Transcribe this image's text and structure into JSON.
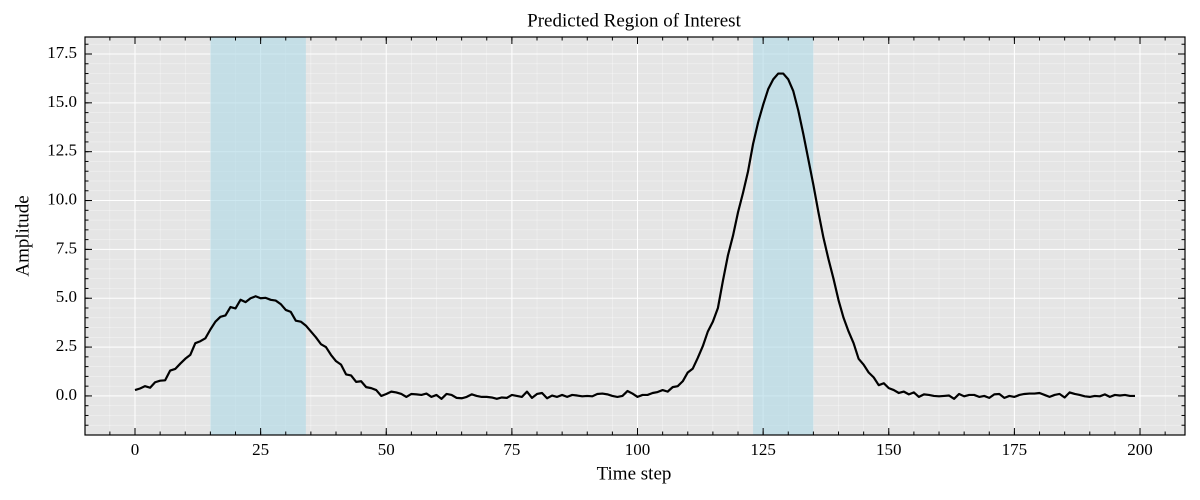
{
  "chart_data": {
    "type": "line",
    "title": "Predicted Region of Interest",
    "xlabel": "Time step",
    "ylabel": "Amplitude",
    "x": [
      0,
      1,
      2,
      3,
      4,
      5,
      6,
      7,
      8,
      9,
      10,
      11,
      12,
      13,
      14,
      15,
      16,
      17,
      18,
      19,
      20,
      21,
      22,
      23,
      24,
      25,
      26,
      27,
      28,
      29,
      30,
      31,
      32,
      33,
      34,
      35,
      36,
      37,
      38,
      39,
      40,
      41,
      42,
      43,
      44,
      45,
      46,
      47,
      48,
      49,
      50,
      51,
      52,
      53,
      54,
      55,
      56,
      57,
      58,
      59,
      60,
      61,
      62,
      63,
      64,
      65,
      66,
      67,
      68,
      69,
      70,
      71,
      72,
      73,
      74,
      75,
      76,
      77,
      78,
      79,
      80,
      81,
      82,
      83,
      84,
      85,
      86,
      87,
      88,
      89,
      90,
      91,
      92,
      93,
      94,
      95,
      96,
      97,
      98,
      99,
      100,
      101,
      102,
      103,
      104,
      105,
      106,
      107,
      108,
      109,
      110,
      111,
      112,
      113,
      114,
      115,
      116,
      117,
      118,
      119,
      120,
      121,
      122,
      123,
      124,
      125,
      126,
      127,
      128,
      129,
      130,
      131,
      132,
      133,
      134,
      135,
      136,
      137,
      138,
      139,
      140,
      141,
      142,
      143,
      144,
      145,
      146,
      147,
      148,
      149,
      150,
      151,
      152,
      153,
      154,
      155,
      156,
      157,
      158,
      159,
      160,
      161,
      162,
      163,
      164,
      165,
      166,
      167,
      168,
      169,
      170,
      171,
      172,
      173,
      174,
      175,
      176,
      177,
      178,
      179,
      180,
      181,
      182,
      183,
      184,
      185,
      186,
      187,
      188,
      189,
      190,
      191,
      192,
      193,
      194,
      195,
      196,
      197,
      198,
      199
    ],
    "series": [
      {
        "color": "#000000",
        "values": [
          0.3,
          0.38,
          0.5,
          0.42,
          0.7,
          0.78,
          0.8,
          1.3,
          1.38,
          1.65,
          1.9,
          2.1,
          2.7,
          2.8,
          2.95,
          3.4,
          3.8,
          4.05,
          4.12,
          4.55,
          4.48,
          4.92,
          4.8,
          5.0,
          5.1,
          5.0,
          5.02,
          4.92,
          4.88,
          4.7,
          4.4,
          4.3,
          3.85,
          3.8,
          3.6,
          3.3,
          3.0,
          2.65,
          2.5,
          2.1,
          1.78,
          1.6,
          1.1,
          1.05,
          0.72,
          0.75,
          0.45,
          0.4,
          0.3,
          0.0,
          0.1,
          0.22,
          0.18,
          0.1,
          -0.05,
          0.1,
          0.08,
          0.05,
          0.12,
          -0.05,
          0.05,
          -0.15,
          0.1,
          0.05,
          -0.1,
          -0.12,
          -0.05,
          0.08,
          0.0,
          -0.05,
          -0.05,
          -0.08,
          -0.15,
          -0.08,
          -0.1,
          0.05,
          0.0,
          -0.05,
          0.22,
          -0.1,
          0.1,
          0.15,
          -0.12,
          0.02,
          -0.05,
          0.05,
          -0.05,
          0.05,
          0.02,
          -0.02,
          0.0,
          -0.02,
          0.1,
          0.12,
          0.08,
          0.0,
          -0.05,
          0.0,
          0.25,
          0.12,
          -0.05,
          0.05,
          0.05,
          0.15,
          0.2,
          0.3,
          0.22,
          0.45,
          0.5,
          0.75,
          1.2,
          1.4,
          1.95,
          2.55,
          3.3,
          3.8,
          4.5,
          5.9,
          7.2,
          8.2,
          9.4,
          10.4,
          11.5,
          12.9,
          14.0,
          14.9,
          15.7,
          16.2,
          16.5,
          16.5,
          16.2,
          15.6,
          14.6,
          13.4,
          12.1,
          10.8,
          9.4,
          8.1,
          7.0,
          6.0,
          4.9,
          4.0,
          3.3,
          2.7,
          1.9,
          1.6,
          1.2,
          0.95,
          0.55,
          0.65,
          0.4,
          0.3,
          0.15,
          0.22,
          0.08,
          0.18,
          -0.05,
          0.08,
          0.05,
          0.0,
          -0.02,
          0.0,
          0.02,
          -0.15,
          0.1,
          -0.02,
          0.05,
          0.05,
          -0.05,
          0.0,
          -0.1,
          0.08,
          0.1,
          -0.1,
          0.0,
          -0.05,
          0.05,
          0.1,
          0.12,
          0.12,
          0.15,
          0.05,
          -0.05,
          0.05,
          0.1,
          -0.08,
          0.18,
          0.1,
          0.05,
          -0.02,
          -0.05,
          0.0,
          -0.02,
          0.08,
          -0.05,
          0.05,
          0.02,
          0.05,
          0.0,
          0.0
        ]
      }
    ],
    "regions": [
      {
        "start": 15,
        "end": 34
      },
      {
        "start": 123,
        "end": 135
      }
    ],
    "region_color": "#add8e6",
    "xlim": [
      -9.95,
      208.95
    ],
    "ylim": [
      -2.0,
      18.37
    ],
    "xticks": [
      0,
      25,
      50,
      75,
      100,
      125,
      150,
      175,
      200
    ],
    "yticks": [
      {
        "value": 0,
        "label": "0.0"
      },
      2.5,
      {
        "value": 5,
        "label": "5.0"
      },
      7.5,
      {
        "value": 10,
        "label": "10.0"
      },
      12.5,
      {
        "value": 15,
        "label": "15.0"
      },
      17.5
    ],
    "grid": true,
    "minor_grid": true,
    "background": "#e5e5e5"
  }
}
